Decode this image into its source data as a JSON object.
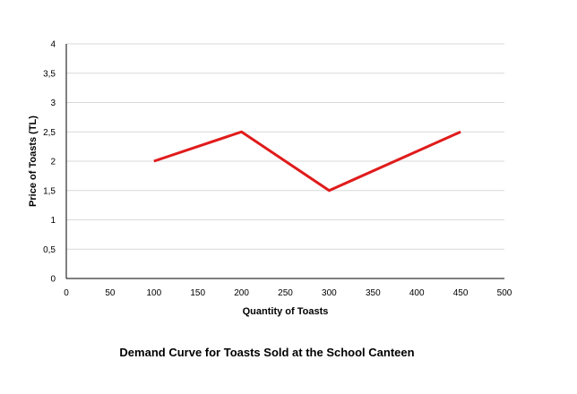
{
  "chart_data": {
    "type": "line",
    "title": "Demand Curve for Toasts Sold at the School Canteen",
    "xlabel": "Quantity  of Toasts",
    "ylabel": "Price of Toasts (TL)",
    "xlim": [
      0,
      500
    ],
    "ylim": [
      0,
      4
    ],
    "x_ticks": [
      "0",
      "50",
      "100",
      "150",
      "200",
      "250",
      "300",
      "350",
      "400",
      "450",
      "500"
    ],
    "y_ticks": [
      "0",
      "0,5",
      "1",
      "1,5",
      "2",
      "2,5",
      "3",
      "3,5",
      "4"
    ],
    "grid": true,
    "series": [
      {
        "color": "#e01b1b",
        "x": [
          100,
          200,
          300,
          450
        ],
        "y": [
          2,
          2.5,
          1.5,
          2.5
        ]
      }
    ]
  }
}
